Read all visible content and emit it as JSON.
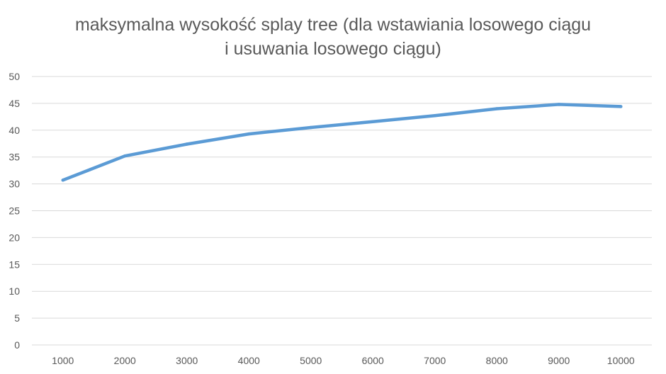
{
  "chart_data": {
    "type": "line",
    "title": "maksymalna wysokość splay tree (dla wstawiania losowego ciągu i usuwania losowego ciągu)",
    "title_lines": [
      "maksymalna wysokość splay tree (dla wstawiania losowego ciągu",
      "i usuwania losowego ciągu)"
    ],
    "xlabel": "",
    "ylabel": "",
    "categories": [
      "1000",
      "2000",
      "3000",
      "4000",
      "5000",
      "6000",
      "7000",
      "8000",
      "9000",
      "10000"
    ],
    "series": [
      {
        "values": [
          30.7,
          35.2,
          37.4,
          39.3,
          40.5,
          41.6,
          42.7,
          44.0,
          44.8,
          44.4
        ],
        "color": "#5b9bd5"
      }
    ],
    "ylim": [
      0,
      50
    ],
    "yticks": [
      "0",
      "5",
      "10",
      "15",
      "20",
      "25",
      "30",
      "35",
      "40",
      "45",
      "50"
    ],
    "grid": true,
    "legend": "none"
  }
}
